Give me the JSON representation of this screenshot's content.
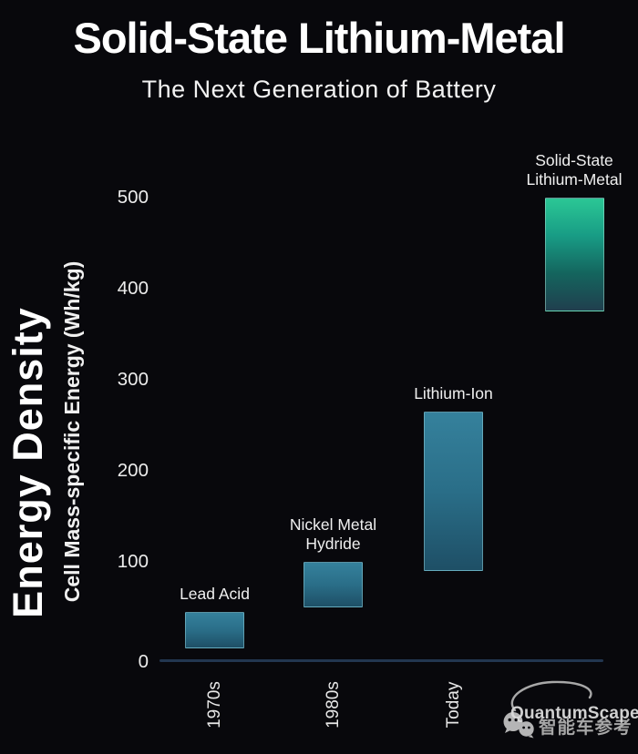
{
  "title": "Solid-State Lithium-Metal",
  "subtitle": "The Next Generation of Battery",
  "y_axis": {
    "title": "Energy Density",
    "unit_label": "Cell Mass-specific Energy (Wh/kg)",
    "ticks": [
      500,
      400,
      300,
      200,
      100,
      0
    ]
  },
  "chart_data": {
    "type": "bar",
    "subtype": "floating-range-columns",
    "title": "Solid-State Lithium-Metal",
    "subtitle": "The Next Generation of Battery",
    "xlabel": "",
    "ylabel": "Cell Mass-specific Energy (Wh/kg)",
    "ylim": [
      0,
      520
    ],
    "yticks": [
      0,
      100,
      200,
      300,
      400,
      500
    ],
    "grid": false,
    "legend": false,
    "categories": [
      "1970s",
      "1980s",
      "Today",
      ""
    ],
    "bars": [
      {
        "name": "Lead Acid",
        "label": "Lead Acid",
        "x_label": "1970s",
        "range_wh_kg": [
          5,
          45
        ],
        "palette": "teal"
      },
      {
        "name": "Nickel Metal Hydride",
        "label": "Nickel Metal\nHydride",
        "x_label": "1980s",
        "range_wh_kg": [
          50,
          100
        ],
        "palette": "teal"
      },
      {
        "name": "Lithium-Ion",
        "label": "Lithium-Ion",
        "x_label": "Today",
        "range_wh_kg": [
          90,
          265
        ],
        "palette": "teal"
      },
      {
        "name": "Solid-State Lithium-Metal",
        "label": "Solid-State\nLithium-Metal",
        "x_label": "",
        "range_wh_kg": [
          375,
          500
        ],
        "palette": "green"
      }
    ],
    "palettes": {
      "teal": {
        "gradient": [
          "#35819c",
          "#2a6e88",
          "#1e4f66"
        ],
        "border": "rgba(150,214,224,0.5)"
      },
      "green": {
        "gradient": [
          "#2bc795",
          "#189c85",
          "#14655e",
          "#203f4e"
        ],
        "border": "rgba(170,230,215,0.5)"
      }
    }
  },
  "branding": {
    "logo_text": "QuantumScape",
    "watermark_text": "智能车参考"
  },
  "colors": {
    "background": "#08080c",
    "text": "#f2f2f2",
    "axis_line": "#223650"
  }
}
